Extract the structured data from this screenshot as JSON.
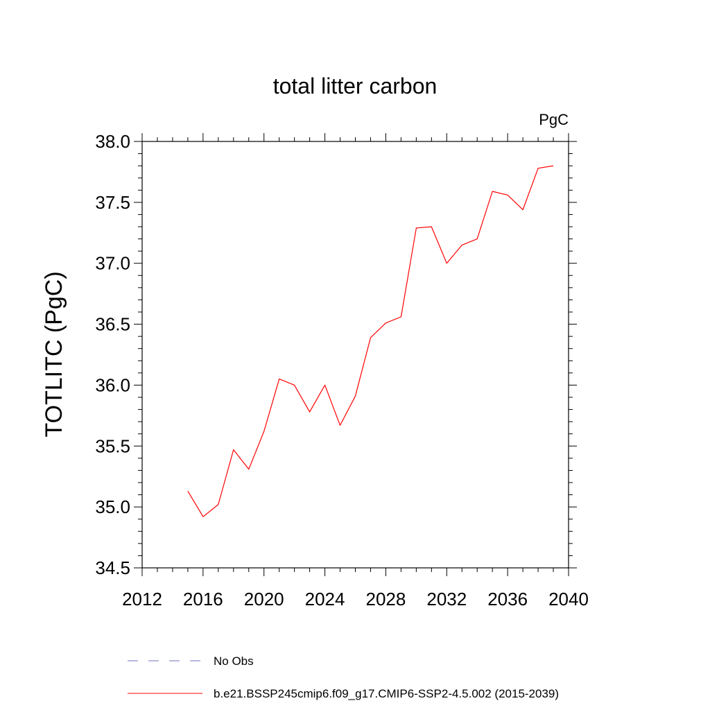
{
  "chart_data": {
    "type": "line",
    "title": "total litter carbon",
    "units": "PgC",
    "ylabel": "TOTLITC  (PgC)",
    "xlabel": "",
    "xlim": [
      2012,
      2040
    ],
    "ylim": [
      34.5,
      38.0
    ],
    "x_ticks": [
      "2012",
      "2016",
      "2020",
      "2024",
      "2028",
      "2032",
      "2036",
      "2040"
    ],
    "y_ticks": [
      "34.5",
      "35.0",
      "35.5",
      "36.0",
      "36.5",
      "37.0",
      "37.5",
      "38.0"
    ],
    "grid": false,
    "legend_placement": "bottom",
    "series": [
      {
        "name": "b.e21.BSSP245cmip6.f09_g17.CMIP6-SSP2-4.5.002 (2015-2039)",
        "color": "#ff0000",
        "style": "solid",
        "x": [
          2015,
          2016,
          2017,
          2018,
          2019,
          2020,
          2021,
          2022,
          2023,
          2024,
          2025,
          2026,
          2027,
          2028,
          2029,
          2030,
          2031,
          2032,
          2033,
          2034,
          2035,
          2036,
          2037,
          2038,
          2039
        ],
        "values": [
          35.13,
          34.92,
          35.02,
          35.47,
          35.31,
          35.62,
          36.05,
          36.0,
          35.78,
          36.0,
          35.67,
          35.91,
          36.39,
          36.51,
          36.56,
          37.29,
          37.3,
          37.0,
          37.15,
          37.2,
          37.59,
          37.56,
          37.44,
          37.78,
          37.8
        ]
      },
      {
        "name": "No Obs",
        "color": "#7070c0",
        "style": "dashed",
        "x": [],
        "values": []
      }
    ]
  }
}
